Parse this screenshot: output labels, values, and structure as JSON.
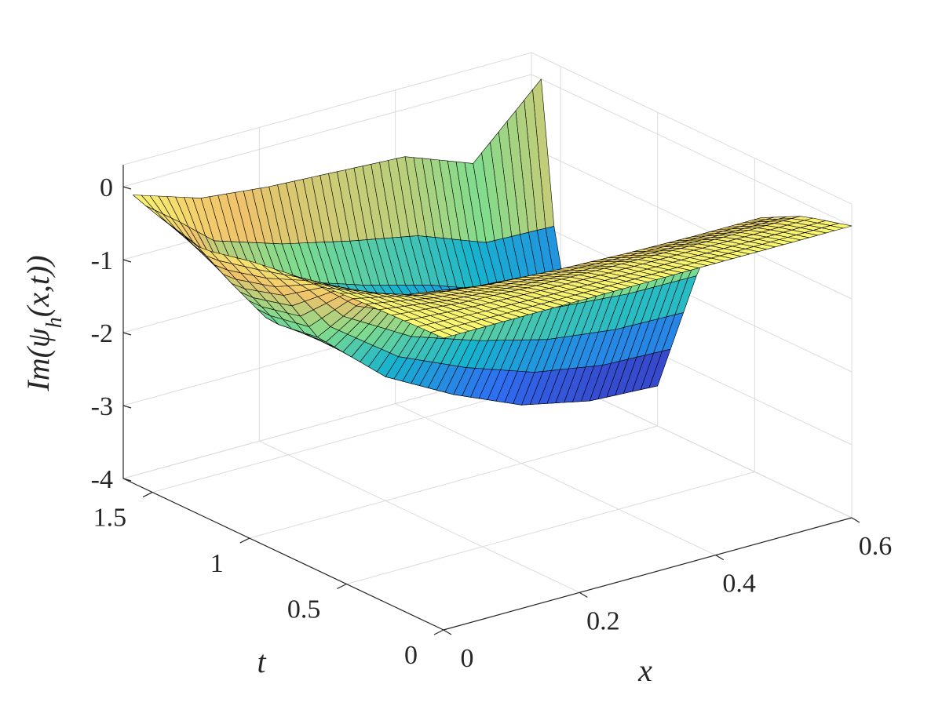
{
  "chart_data": {
    "type": "surface3d",
    "title": "",
    "xlabel": "x",
    "ylabel": "t",
    "zlabel": "Im(ψ_h(x,t))",
    "xlim": [
      0,
      0.6
    ],
    "ylim": [
      0,
      1.6
    ],
    "zlim": [
      -4,
      0.3
    ],
    "x_ticks": [
      "0",
      "0.2",
      "0.4",
      "0.6"
    ],
    "y_ticks": [
      "0",
      "0.5",
      "1",
      "1.5"
    ],
    "z_ticks": [
      "-4",
      "-3",
      "-2",
      "-1",
      "0"
    ],
    "x_tick_values": [
      0,
      0.2,
      0.4,
      0.6
    ],
    "y_tick_values": [
      0,
      0.5,
      1,
      1.5
    ],
    "z_tick_values": [
      -4,
      -3,
      -2,
      -1,
      0
    ],
    "grid": true,
    "colormap": [
      "#3e26a8",
      "#2f6ef2",
      "#16b4cf",
      "#7fdc8e",
      "#f0c36a",
      "#f9f871"
    ],
    "x": [
      0.0,
      0.05,
      0.1,
      0.2,
      0.3,
      0.4,
      0.5,
      0.6
    ],
    "t": [
      0.0,
      0.25,
      0.5,
      0.75,
      1.0,
      1.25,
      1.5,
      1.6
    ],
    "z": [
      [
        0.0,
        0.0,
        0.0,
        0.0,
        0.0,
        0.0,
        0.0,
        0.0
      ],
      [
        -0.02,
        -0.06,
        -0.1,
        -0.14,
        -0.16,
        -0.17,
        -0.18,
        -0.18
      ],
      [
        -0.05,
        -0.16,
        -0.28,
        -0.4,
        -0.46,
        -0.5,
        -0.52,
        -0.52
      ],
      [
        -0.1,
        -0.35,
        -0.65,
        -0.95,
        -1.1,
        -1.2,
        -1.25,
        -1.25
      ],
      [
        -0.2,
        -0.8,
        -1.5,
        -2.3,
        -2.8,
        -3.2,
        -3.4,
        -3.45
      ],
      [
        -0.35,
        -1.0,
        -1.6,
        -2.1,
        -2.45,
        -2.75,
        -2.95,
        -2.95
      ],
      [
        -0.15,
        -0.6,
        -1.1,
        -1.5,
        -1.8,
        -2.05,
        -2.4,
        -2.9
      ],
      [
        -0.05,
        -0.2,
        -0.35,
        -0.45,
        -0.5,
        -0.55,
        -0.9,
        0.0
      ]
    ]
  }
}
